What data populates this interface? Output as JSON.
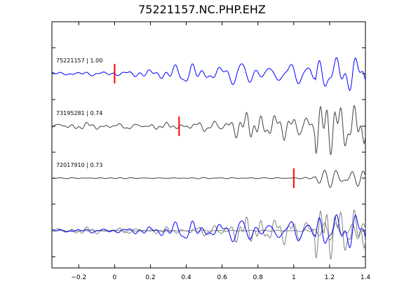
{
  "chart_data": {
    "type": "line",
    "title": "75221157.NC.PHP.EHZ",
    "xlabel": "",
    "ylabel": "",
    "xlim": [
      -0.35,
      1.4
    ],
    "xticks": [
      -0.2,
      0,
      0.2,
      0.4,
      0.6,
      0.8,
      1,
      1.2,
      1.4
    ],
    "xtick_labels": [
      "−0.2",
      "0",
      "0.2",
      "0.4",
      "0.6",
      "0.8",
      "1",
      "1.2",
      "1.4"
    ],
    "grid": false,
    "colors": {
      "reference": "#0000ff",
      "other": "#404040",
      "overlay_other": "#808080",
      "pick": "#ff0000"
    },
    "traces": [
      {
        "label": "75221157 | 1.00",
        "id": "75221157",
        "correlation": 1.0,
        "pick_time": 0.0,
        "color": "#0000ff"
      },
      {
        "label": "73195281 | 0.74",
        "id": "73195281",
        "correlation": 0.74,
        "pick_time": 0.36,
        "color": "#404040"
      },
      {
        "label": "72017910 | 0.73",
        "id": "72017910",
        "correlation": 0.73,
        "pick_time": 1.0,
        "color": "#404040"
      }
    ],
    "overlay": {
      "description": ""
    }
  }
}
